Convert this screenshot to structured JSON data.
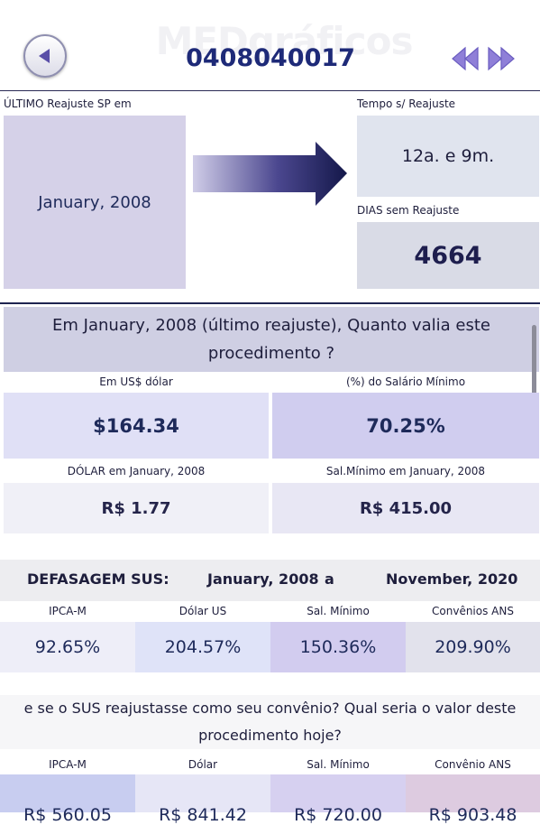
{
  "header": {
    "watermark": "MEDgráficos",
    "procedure_code": "0408040017",
    "back_icon": "chevron-left-icon",
    "prev_icon": "double-chevron-left-icon",
    "next_icon": "double-chevron-right-icon",
    "accent": "#8f7fd8"
  },
  "top": {
    "last_label": "ÚLTIMO Reajuste SP em",
    "last_value": "January, 2008",
    "time_label": "Tempo s/ Reajuste",
    "time_value": "12a. e 9m.",
    "days_label": "DIAS sem Reajuste",
    "days_value": "4664"
  },
  "worth": {
    "question": "Em January, 2008 (último reajuste), Quanto valia este procedimento ?",
    "usd_label": "Em US$ dólar",
    "usd_value": "$164.34",
    "pct_label": "(%) do Salário Mínimo",
    "pct_value": "70.25%",
    "dolar_label": "DÓLAR em January, 2008",
    "dolar_value": "R$ 1.77",
    "sal_label": "Sal.Mínimo em January, 2008",
    "sal_value": "R$ 415.00"
  },
  "lag": {
    "title": "DEFASAGEM SUS:",
    "from": "January, 2008",
    "sep": "a",
    "to": "November, 2020",
    "columns": [
      "IPCA-M",
      "Dólar US",
      "Sal. Mínimo",
      "Convênios ANS"
    ],
    "values": [
      "92.65%",
      "204.57%",
      "150.36%",
      "209.90%"
    ]
  },
  "projection": {
    "question": "e se o SUS reajustasse como seu convênio? Qual seria o valor deste procedimento hoje?",
    "columns": [
      "IPCA-M",
      "Dólar",
      "Sal. Mínimo",
      "Convênio ANS"
    ],
    "values": [
      "R$ 560.05",
      "R$ 841.42",
      "R$ 720.00",
      "R$ 903.48"
    ]
  }
}
